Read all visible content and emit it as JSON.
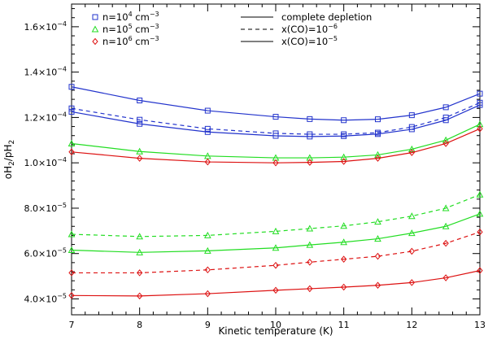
{
  "chart_data": {
    "type": "line",
    "title": "",
    "xlabel": "Kinetic temperature (K)",
    "ylabel_parts": {
      "a": "oH",
      "sub_a": "2",
      "slash": "/pH",
      "sub_b": "2"
    },
    "xlim": [
      7,
      13
    ],
    "ylim": [
      3.3e-05,
      0.00017
    ],
    "x_ticks": [
      {
        "value": 7,
        "label": "7"
      },
      {
        "value": 8,
        "label": "8"
      },
      {
        "value": 9,
        "label": "9"
      },
      {
        "value": 10,
        "label": "10"
      },
      {
        "value": 11,
        "label": "11"
      },
      {
        "value": 12,
        "label": "12"
      },
      {
        "value": 13,
        "label": "13"
      }
    ],
    "y_ticks": [
      {
        "value": 4e-05,
        "mant": "4.0×10",
        "exp": "−5"
      },
      {
        "value": 6e-05,
        "mant": "6.0×10",
        "exp": "−5"
      },
      {
        "value": 8e-05,
        "mant": "8.0×10",
        "exp": "−5"
      },
      {
        "value": 0.0001,
        "mant": "1.0×10",
        "exp": "−4"
      },
      {
        "value": 0.00012,
        "mant": "1.2×10",
        "exp": "−4"
      },
      {
        "value": 0.00014,
        "mant": "1.4×10",
        "exp": "−4"
      },
      {
        "value": 0.00016,
        "mant": "1.6×10",
        "exp": "−4"
      }
    ],
    "legend_density": [
      {
        "color": "#2233cc",
        "marker": "square",
        "pre": "n=10",
        "exp": "4",
        "post": " cm",
        "unit_exp": "−3"
      },
      {
        "color": "#22dd22",
        "marker": "triangle",
        "pre": "n=10",
        "exp": "5",
        "post": " cm",
        "unit_exp": "−3"
      },
      {
        "color": "#dd1111",
        "marker": "diamond",
        "pre": "n=10",
        "exp": "6",
        "post": " cm",
        "unit_exp": "−3"
      }
    ],
    "legend_style": [
      {
        "dash": "solid",
        "pre": "complete depletion",
        "exp": ""
      },
      {
        "dash": "dashed",
        "pre": "x(CO)=10",
        "exp": "−6"
      },
      {
        "dash": "solid",
        "pre": "x(CO)=10",
        "exp": "−5"
      }
    ],
    "x": [
      7,
      8,
      9,
      10,
      10.5,
      11,
      11.5,
      12,
      12.5,
      13
    ],
    "series": [
      {
        "color": "#2233cc",
        "marker": "square",
        "dash": "solid",
        "values": [
          0.0001335,
          0.0001275,
          0.000123,
          0.0001203,
          0.0001193,
          0.0001188,
          0.0001192,
          0.000121,
          0.0001245,
          0.0001305
        ]
      },
      {
        "color": "#2233cc",
        "marker": "square",
        "dash": "dashed",
        "values": [
          0.000124,
          0.000119,
          0.000115,
          0.000113,
          0.0001126,
          0.0001126,
          0.0001133,
          0.0001158,
          0.00012,
          0.0001265
        ]
      },
      {
        "color": "#2233cc",
        "marker": "square",
        "dash": "solid",
        "values": [
          0.0001225,
          0.0001172,
          0.0001136,
          0.0001119,
          0.0001116,
          0.0001118,
          0.0001127,
          0.0001148,
          0.0001188,
          0.0001255
        ]
      },
      {
        "color": "#22dd22",
        "marker": "triangle",
        "dash": "solid",
        "values": [
          0.0001085,
          0.000105,
          0.000103,
          0.0001022,
          0.0001022,
          0.0001025,
          0.0001035,
          0.000106,
          0.00011,
          0.000117
        ]
      },
      {
        "color": "#dd1111",
        "marker": "diamond",
        "dash": "solid",
        "values": [
          0.0001048,
          0.000102,
          0.0001004,
          0.0001,
          0.0001002,
          0.0001006,
          0.000102,
          0.0001045,
          0.0001085,
          0.000115
        ]
      },
      {
        "color": "#22dd22",
        "marker": "triangle",
        "dash": "dashed",
        "values": [
          6.85e-05,
          6.75e-05,
          6.8e-05,
          6.98e-05,
          7.1e-05,
          7.22e-05,
          7.4e-05,
          7.65e-05,
          8e-05,
          8.6e-05
        ]
      },
      {
        "color": "#22dd22",
        "marker": "triangle",
        "dash": "solid",
        "values": [
          6.15e-05,
          6.05e-05,
          6.12e-05,
          6.25e-05,
          6.38e-05,
          6.5e-05,
          6.65e-05,
          6.9e-05,
          7.2e-05,
          7.75e-05
        ]
      },
      {
        "color": "#dd1111",
        "marker": "diamond",
        "dash": "dashed",
        "values": [
          5.15e-05,
          5.15e-05,
          5.28e-05,
          5.48e-05,
          5.62e-05,
          5.75e-05,
          5.88e-05,
          6.1e-05,
          6.45e-05,
          6.95e-05
        ]
      },
      {
        "color": "#dd1111",
        "marker": "diamond",
        "dash": "solid",
        "values": [
          4.15e-05,
          4.13e-05,
          4.23e-05,
          4.38e-05,
          4.45e-05,
          4.52e-05,
          4.6e-05,
          4.72e-05,
          4.93e-05,
          5.25e-05
        ]
      }
    ]
  }
}
